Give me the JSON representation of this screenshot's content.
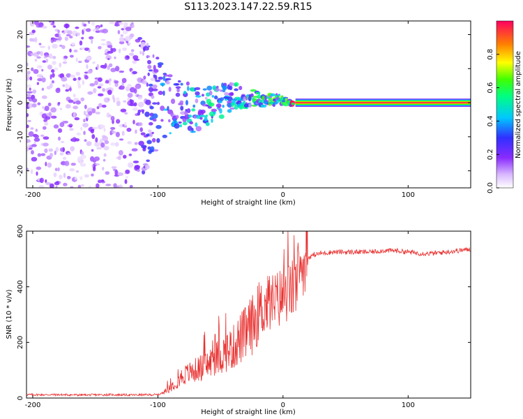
{
  "title": "S113.2023.147.22.59.R15",
  "colors": {
    "snr_line": "#e8302f",
    "spectrum_low": "#7a00ff",
    "spectrum_mid": "#00e0ff",
    "spectrum_high": "#ff1a40",
    "axis": "#000000"
  },
  "chart_data": [
    {
      "type": "heatmap",
      "title": "S113.2023.147.22.59.R15",
      "xlabel": "Height of straight line (km)",
      "ylabel": "Frequency (Hz)",
      "xlim": [
        -205,
        150
      ],
      "ylim": [
        -25,
        24
      ],
      "x_ticks": [
        -200,
        -100,
        0,
        100
      ],
      "y_ticks": [
        -20,
        -10,
        0,
        10,
        20
      ],
      "colorbar": {
        "label": "Normalized spectral amplitude",
        "range": [
          0,
          1
        ],
        "ticks": [
          0.0,
          0.2,
          0.4,
          0.6,
          0.8
        ],
        "colormap": "rainbow (purple to red)"
      },
      "description_points": [
        {
          "x": -200,
          "y_spread": [
            -25,
            24
          ],
          "amplitude": 0.1
        },
        {
          "x": -120,
          "y_spread": [
            -25,
            24
          ],
          "amplitude": 0.1
        },
        {
          "x": -90,
          "y_spread": [
            -10,
            8
          ],
          "amplitude": 0.25
        },
        {
          "x": -65,
          "y_spread": [
            -8,
            4
          ],
          "amplitude": 0.3
        },
        {
          "x": -40,
          "y_spread": [
            -2,
            6
          ],
          "amplitude": 0.3
        },
        {
          "x": -20,
          "y_spread": [
            -1,
            3
          ],
          "amplitude": 0.35
        },
        {
          "x": 0,
          "y_spread": [
            -1,
            2
          ],
          "amplitude": 0.4
        },
        {
          "x": 10,
          "y_spread": [
            -0.5,
            0.5
          ],
          "amplitude": 1.0
        },
        {
          "x": 150,
          "y_spread": [
            -0.5,
            0.5
          ],
          "amplitude": 1.0
        }
      ]
    },
    {
      "type": "line",
      "xlabel": "Height of straight line (km)",
      "ylabel": "SNR (10 * v/v)",
      "xlim": [
        -205,
        150
      ],
      "ylim": [
        0,
        600
      ],
      "x_ticks": [
        -200,
        -100,
        0,
        100
      ],
      "y_ticks": [
        0,
        200,
        400,
        600
      ],
      "series": [
        {
          "x": [
            -205,
            -180,
            -160,
            -140,
            -120,
            -100,
            -95,
            -90,
            -85,
            -80,
            -75,
            -70,
            -65,
            -60,
            -55,
            -50,
            -45,
            -40,
            -35,
            -30,
            -25,
            -20,
            -15,
            -10,
            -5,
            0,
            5,
            10,
            15,
            20,
            25,
            30,
            40,
            50,
            60,
            70,
            80,
            90,
            100,
            110,
            120,
            130,
            140,
            150
          ],
          "y": [
            12,
            12,
            11,
            12,
            11,
            12,
            20,
            40,
            60,
            80,
            90,
            100,
            110,
            120,
            140,
            150,
            170,
            180,
            210,
            230,
            260,
            300,
            330,
            340,
            350,
            370,
            380,
            400,
            470,
            505,
            515,
            520,
            525,
            525,
            525,
            525,
            530,
            530,
            525,
            520,
            520,
            525,
            530,
            535
          ]
        }
      ]
    }
  ]
}
